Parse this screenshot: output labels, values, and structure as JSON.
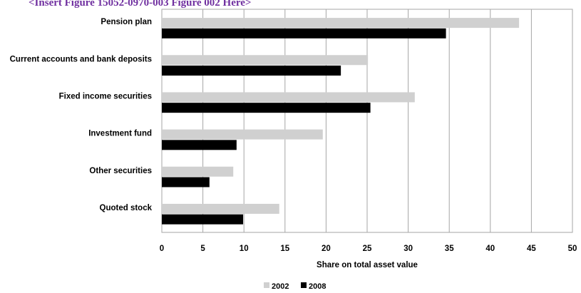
{
  "header_note": "<Insert Figure 15052-0970-003 Figure 002 Here>",
  "chart_data": {
    "type": "bar",
    "orientation": "horizontal",
    "categories": [
      "Pension plan",
      "Current accounts and bank deposits",
      "Fixed income securities",
      "Investment fund",
      "Other securities",
      "Quoted stock"
    ],
    "series": [
      {
        "name": "2002",
        "color": "#d0d0d0",
        "values": [
          43.5,
          25.1,
          30.8,
          19.6,
          8.7,
          14.3
        ]
      },
      {
        "name": "2008",
        "color": "#000000",
        "values": [
          34.6,
          21.8,
          25.4,
          9.1,
          5.8,
          9.9
        ]
      }
    ],
    "xlabel": "Share on total asset value",
    "xlim": [
      0,
      50
    ],
    "xticks": [
      "0",
      "5",
      "10",
      "15",
      "20",
      "25",
      "30",
      "35",
      "40",
      "45",
      "50"
    ],
    "grid": true,
    "legend_position": "bottom"
  }
}
